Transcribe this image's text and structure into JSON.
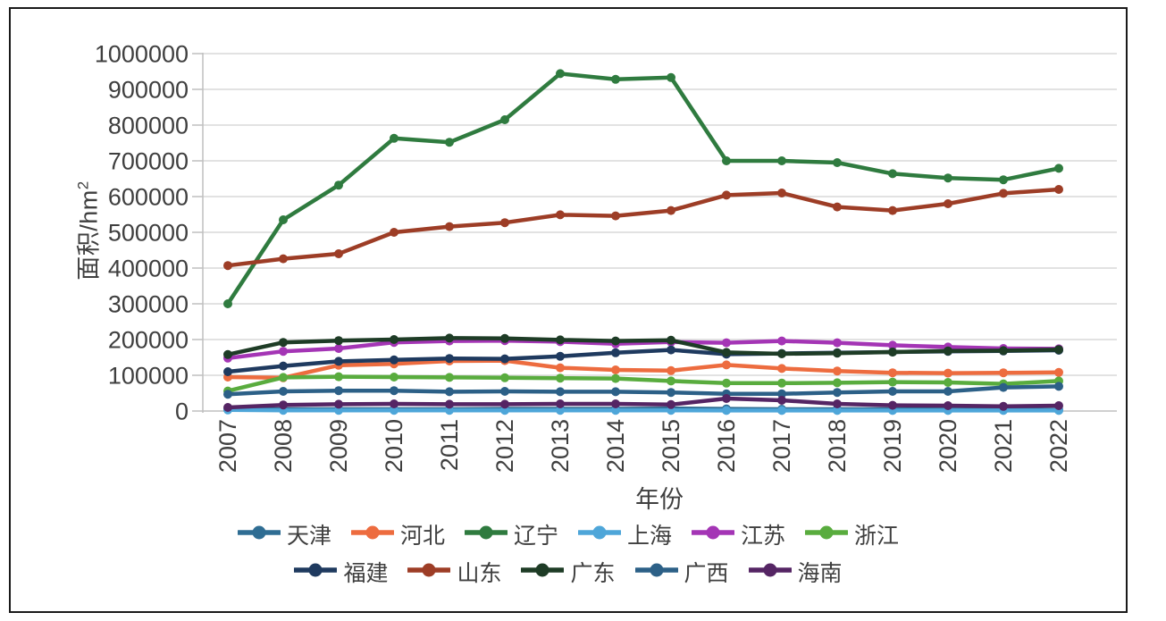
{
  "figure": {
    "background": "#ffffff",
    "frame_color": "#1a1a1a",
    "gridline_color": "#d8d8d8",
    "axis_color": "#bfbfbf",
    "text_color": "#3f3f3f"
  },
  "chart_data": {
    "type": "line",
    "title": "",
    "xlabel": "年份",
    "ylabel": "面积/hm²",
    "ylabel_base": "面积/hm",
    "ylabel_superscript": "2",
    "x": [
      "2007",
      "2008",
      "2009",
      "2010",
      "2011",
      "2012",
      "2013",
      "2014",
      "2015",
      "2016",
      "2017",
      "2018",
      "2019",
      "2020",
      "2021",
      "2022"
    ],
    "ylim": [
      0,
      1000000
    ],
    "ytick_interval": 100000,
    "ytick_labels": [
      "0",
      "100000",
      "200000",
      "300000",
      "400000",
      "500000",
      "600000",
      "700000",
      "800000",
      "900000",
      "1000000"
    ],
    "grid": "horizontal",
    "legend_position": "bottom",
    "legend_row_split": 6,
    "series": [
      {
        "name": "天津",
        "color": "#2f6d93",
        "values": [
          4000,
          5000,
          5000,
          5000,
          5000,
          6000,
          6000,
          6000,
          7000,
          6000,
          5000,
          5000,
          5000,
          4000,
          3000,
          3000
        ]
      },
      {
        "name": "河北",
        "color": "#ed6c3f",
        "values": [
          95000,
          93000,
          128000,
          132000,
          140000,
          141000,
          121000,
          115000,
          113000,
          129000,
          119000,
          112000,
          107000,
          106000,
          107000,
          108000
        ]
      },
      {
        "name": "辽宁",
        "color": "#2f7b3f",
        "values": [
          300000,
          535000,
          632000,
          763000,
          752000,
          815000,
          944000,
          928000,
          933000,
          700000,
          700000,
          695000,
          664000,
          652000,
          647000,
          679000
        ]
      },
      {
        "name": "上海",
        "color": "#4ea6d9",
        "values": [
          3000,
          2000,
          2000,
          2000,
          2000,
          2000,
          2000,
          2000,
          2000,
          1500,
          1500,
          1500,
          1500,
          1500,
          1500,
          1500
        ]
      },
      {
        "name": "江苏",
        "color": "#a435b5",
        "values": [
          148000,
          167000,
          175000,
          192000,
          196000,
          197000,
          194000,
          188000,
          193000,
          191000,
          196000,
          191000,
          184000,
          179000,
          175000,
          174000
        ]
      },
      {
        "name": "浙江",
        "color": "#59ac3e",
        "values": [
          56000,
          94000,
          96000,
          95000,
          94000,
          93000,
          92000,
          91000,
          84000,
          78000,
          78000,
          79000,
          81000,
          80000,
          76000,
          84000
        ]
      },
      {
        "name": "福建",
        "color": "#1f3a5f",
        "values": [
          110000,
          126000,
          139000,
          143000,
          147000,
          146000,
          153000,
          163000,
          171000,
          159000,
          161000,
          163000,
          165000,
          167000,
          168000,
          170000
        ]
      },
      {
        "name": "山东",
        "color": "#9d3d26",
        "values": [
          407000,
          426000,
          440000,
          500000,
          516000,
          527000,
          549000,
          546000,
          561000,
          604000,
          610000,
          571000,
          561000,
          580000,
          609000,
          620000
        ]
      },
      {
        "name": "广东",
        "color": "#1e3c26",
        "values": [
          158000,
          192000,
          197000,
          200000,
          204000,
          203000,
          199000,
          196000,
          198000,
          164000,
          160000,
          162000,
          165000,
          168000,
          169000,
          172000
        ]
      },
      {
        "name": "广西",
        "color": "#2c6087",
        "values": [
          47000,
          55000,
          57000,
          57000,
          54000,
          55000,
          54000,
          54000,
          52000,
          48000,
          48000,
          52000,
          55000,
          55000,
          66000,
          69000
        ]
      },
      {
        "name": "海南",
        "color": "#552564",
        "values": [
          10000,
          17000,
          19000,
          20000,
          19000,
          19000,
          20000,
          20000,
          18000,
          35000,
          30000,
          20000,
          16000,
          15000,
          13000,
          15000
        ]
      }
    ]
  }
}
